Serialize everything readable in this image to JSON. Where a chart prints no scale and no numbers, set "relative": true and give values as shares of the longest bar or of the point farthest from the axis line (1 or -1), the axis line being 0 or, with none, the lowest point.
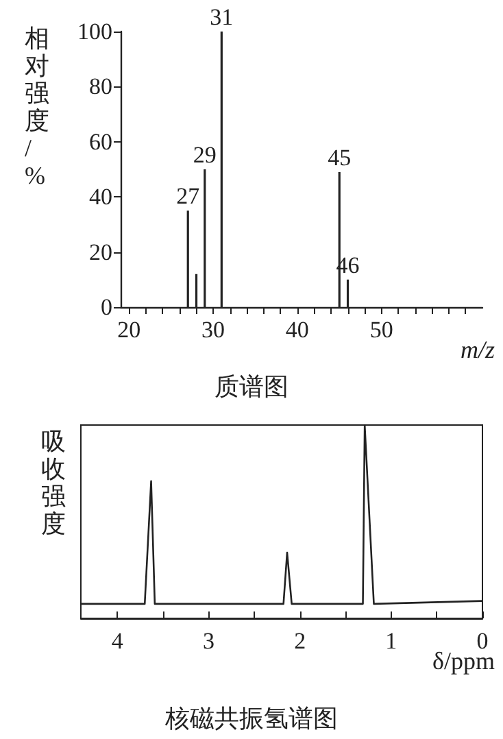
{
  "chart_data": [
    {
      "type": "bar",
      "title": "质谱图",
      "xlabel": "m/z",
      "ylabel": "相对强度/%",
      "x": [
        27,
        28,
        29,
        31,
        45,
        46
      ],
      "values": [
        35,
        12,
        50,
        100,
        49,
        10
      ],
      "color": "#222222",
      "xlim": [
        19,
        62
      ],
      "xticks": [
        20,
        {
          "value": 22,
          "label": null
        },
        {
          "value": 24,
          "label": null
        },
        {
          "value": 26,
          "label": null
        },
        {
          "value": 28,
          "label": null
        },
        30,
        {
          "value": 32,
          "label": null
        },
        {
          "value": 34,
          "label": null
        },
        {
          "value": 36,
          "label": null
        },
        {
          "value": 38,
          "label": null
        },
        40,
        {
          "value": 42,
          "label": null
        },
        {
          "value": 44,
          "label": null
        },
        {
          "value": 46,
          "label": null
        },
        {
          "value": 48,
          "label": null
        },
        50,
        {
          "value": 52,
          "label": null
        },
        {
          "value": 54,
          "label": null
        },
        {
          "value": 56,
          "label": null
        },
        {
          "value": 58,
          "label": null
        },
        {
          "value": 60,
          "label": null
        }
      ],
      "ylim": [
        0,
        100
      ],
      "yticks": [
        0,
        20,
        40,
        60,
        80,
        100
      ],
      "annotations": [
        {
          "text": "27",
          "x": 27,
          "y": 35
        },
        {
          "text": "29",
          "x": 29,
          "y": 50
        },
        {
          "text": "31",
          "x": 31,
          "y": 100
        },
        {
          "text": "45",
          "x": 45,
          "y": 49
        },
        {
          "text": "46",
          "x": 46,
          "y": 10
        }
      ]
    },
    {
      "type": "line",
      "title": "核磁共振氢谱图",
      "xlabel": "δ/ppm",
      "ylabel": "吸收强度",
      "relative": true,
      "marker": "none",
      "color": "#222222",
      "x": [
        4.4,
        3.7,
        3.63,
        3.59,
        2.18,
        2.14,
        2.09,
        1.31,
        1.29,
        1.19,
        0
      ],
      "values": [
        0.075,
        0.075,
        0.71,
        0.075,
        0.075,
        0.34,
        0.075,
        0.075,
        1,
        0.075,
        0.09
      ],
      "xlim": [
        4.4,
        0
      ],
      "xticks": [
        4,
        {
          "value": 3.5,
          "label": null
        },
        3,
        {
          "value": 2.5,
          "label": null
        },
        2,
        {
          "value": 1.5,
          "label": null
        },
        1,
        {
          "value": 0.5,
          "label": null
        },
        0
      ]
    }
  ]
}
